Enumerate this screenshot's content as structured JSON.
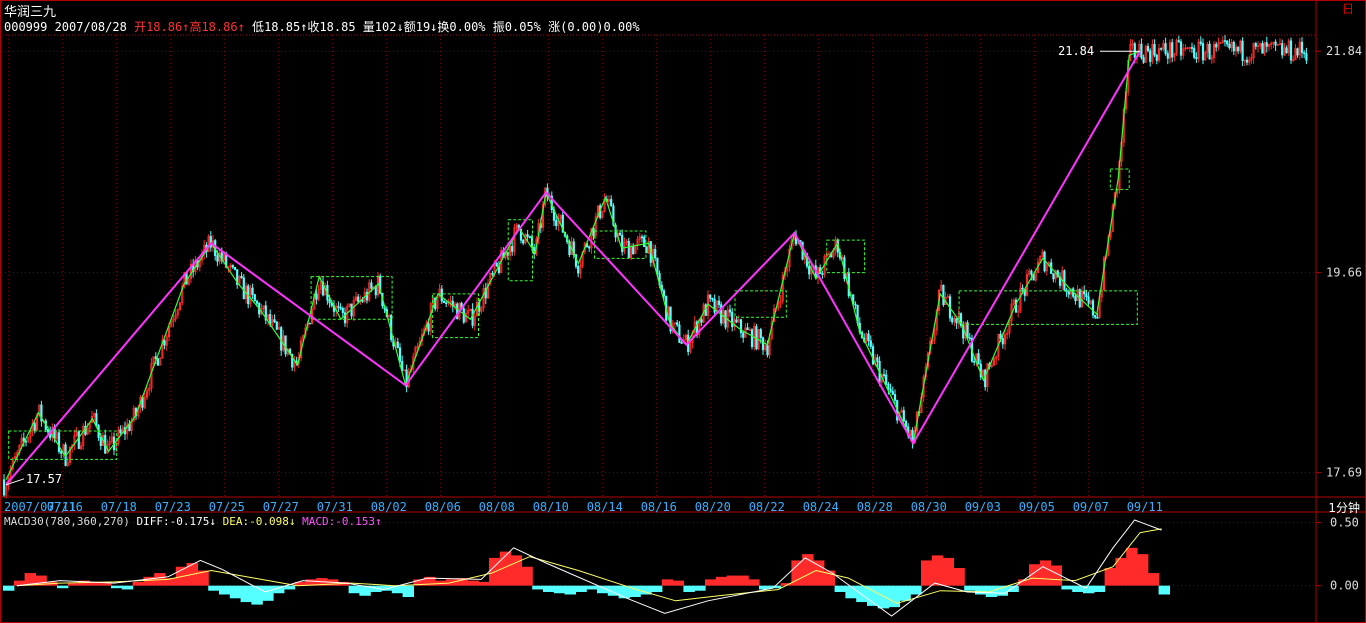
{
  "header": {
    "title": "华润三九",
    "code_date": "000999 2007/08/28",
    "open_label": "开",
    "open": "18.86",
    "high_label": "高",
    "high": "18.86",
    "low_label": "低",
    "low": "18.85",
    "close_label": "收",
    "close": "18.85",
    "volume": "量102",
    "amount": "额19",
    "turnover": "换0.00%",
    "amplitude": "振0.05%",
    "change": "涨(0.00)0.00%",
    "up_arrow": "↑",
    "down_arrow": "↓"
  },
  "period_label": "1分钟",
  "corner_icon": "restore-icon",
  "colors": {
    "background": "#000000",
    "frame": "#b40000",
    "grid": "#8a0000",
    "up": "#ff2a2a",
    "down": "#55ffff",
    "zigzag_major": "#ff33ff",
    "zigzag_minor": "#33ff33",
    "box": "#33ff33",
    "diff_line": "#ffffff",
    "dea_line": "#ffff66",
    "macd_text": "#ff55ff"
  },
  "chart_data": [
    {
      "type": "candlestick",
      "y_ticks": [
        17.69,
        19.66,
        21.84
      ],
      "ylim": [
        17.45,
        22.0
      ],
      "high_marker": "21.84",
      "low_marker": "17.57",
      "x_ticks": [
        "2007/07/11",
        "07/16",
        "07/18",
        "07/23",
        "07/25",
        "07/27",
        "07/31",
        "08/02",
        "08/06",
        "08/08",
        "08/10",
        "08/14",
        "08/16",
        "08/20",
        "08/22",
        "08/24",
        "08/28",
        "08/30",
        "09/03",
        "09/05",
        "09/07",
        "09/11"
      ],
      "major_zigzag": [
        {
          "x": 0.0,
          "price": 17.57
        },
        {
          "x": 3.8,
          "price": 19.95
        },
        {
          "x": 7.4,
          "price": 18.55
        },
        {
          "x": 10.0,
          "price": 20.45
        },
        {
          "x": 12.6,
          "price": 18.95
        },
        {
          "x": 14.6,
          "price": 20.05
        },
        {
          "x": 16.8,
          "price": 17.98
        },
        {
          "x": 21.0,
          "price": 21.84
        }
      ],
      "minor_zigzag": [
        {
          "x": 0.0,
          "price": 17.62
        },
        {
          "x": 0.6,
          "price": 18.28
        },
        {
          "x": 1.1,
          "price": 17.85
        },
        {
          "x": 1.6,
          "price": 18.22
        },
        {
          "x": 1.9,
          "price": 17.9
        },
        {
          "x": 2.4,
          "price": 18.25
        },
        {
          "x": 3.3,
          "price": 19.55
        },
        {
          "x": 3.8,
          "price": 19.95
        },
        {
          "x": 4.3,
          "price": 19.55
        },
        {
          "x": 4.7,
          "price": 19.3
        },
        {
          "x": 5.4,
          "price": 18.75
        },
        {
          "x": 5.8,
          "price": 19.62
        },
        {
          "x": 6.2,
          "price": 19.2
        },
        {
          "x": 6.9,
          "price": 19.55
        },
        {
          "x": 7.4,
          "price": 18.55
        },
        {
          "x": 8.0,
          "price": 19.45
        },
        {
          "x": 8.6,
          "price": 19.2
        },
        {
          "x": 9.5,
          "price": 20.1
        },
        {
          "x": 9.8,
          "price": 19.85
        },
        {
          "x": 10.0,
          "price": 20.45
        },
        {
          "x": 10.6,
          "price": 19.75
        },
        {
          "x": 11.1,
          "price": 20.4
        },
        {
          "x": 11.4,
          "price": 19.9
        },
        {
          "x": 11.9,
          "price": 19.95
        },
        {
          "x": 12.3,
          "price": 19.15
        },
        {
          "x": 12.6,
          "price": 18.95
        },
        {
          "x": 13.0,
          "price": 19.35
        },
        {
          "x": 13.6,
          "price": 19.1
        },
        {
          "x": 14.1,
          "price": 18.95
        },
        {
          "x": 14.6,
          "price": 20.05
        },
        {
          "x": 15.0,
          "price": 19.6
        },
        {
          "x": 15.4,
          "price": 19.95
        },
        {
          "x": 15.8,
          "price": 19.1
        },
        {
          "x": 16.8,
          "price": 17.98
        },
        {
          "x": 17.3,
          "price": 19.45
        },
        {
          "x": 17.7,
          "price": 19.15
        },
        {
          "x": 18.1,
          "price": 18.6
        },
        {
          "x": 18.7,
          "price": 19.35
        },
        {
          "x": 19.2,
          "price": 19.8
        },
        {
          "x": 19.7,
          "price": 19.5
        },
        {
          "x": 20.2,
          "price": 19.25
        },
        {
          "x": 20.6,
          "price": 20.6
        },
        {
          "x": 20.8,
          "price": 21.8
        },
        {
          "x": 21.0,
          "price": 21.84
        }
      ],
      "consolidation_boxes": [
        {
          "x0": 0.05,
          "x1": 2.05,
          "top": 18.1,
          "bottom": 17.82
        },
        {
          "x0": 5.65,
          "x1": 7.15,
          "top": 19.62,
          "bottom": 19.2
        },
        {
          "x0": 7.9,
          "x1": 8.75,
          "top": 19.45,
          "bottom": 19.02
        },
        {
          "x0": 9.3,
          "x1": 9.75,
          "top": 20.18,
          "bottom": 19.58
        },
        {
          "x0": 10.9,
          "x1": 11.85,
          "top": 20.07,
          "bottom": 19.8
        },
        {
          "x0": 13.5,
          "x1": 14.45,
          "top": 19.48,
          "bottom": 19.22
        },
        {
          "x0": 15.2,
          "x1": 15.9,
          "top": 19.98,
          "bottom": 19.66
        },
        {
          "x0": 17.65,
          "x1": 20.95,
          "top": 19.48,
          "bottom": 19.15
        },
        {
          "x0": 20.45,
          "x1": 20.8,
          "top": 20.68,
          "bottom": 20.48
        }
      ]
    },
    {
      "type": "macd",
      "params": "MACD30(780,360,270)",
      "diff_label": "DIFF:",
      "diff": "-0.175",
      "dea_label": "DEA:",
      "dea": "-0.098",
      "macd_label": "MACD:",
      "macd": "-0.153",
      "y_ticks": [
        0.0,
        0.5
      ],
      "ylim": [
        -0.28,
        0.56
      ],
      "histogram": [
        {
          "x": 0.05,
          "v": -0.04
        },
        {
          "x": 0.25,
          "v": 0.04
        },
        {
          "x": 0.45,
          "v": 0.1
        },
        {
          "x": 0.65,
          "v": 0.08
        },
        {
          "x": 0.85,
          "v": 0.03
        },
        {
          "x": 1.05,
          "v": -0.02
        },
        {
          "x": 1.25,
          "v": 0.02
        },
        {
          "x": 1.45,
          "v": 0.04
        },
        {
          "x": 1.65,
          "v": 0.03
        },
        {
          "x": 1.85,
          "v": 0.02
        },
        {
          "x": 2.05,
          "v": -0.02
        },
        {
          "x": 2.25,
          "v": -0.03
        },
        {
          "x": 2.45,
          "v": 0.03
        },
        {
          "x": 2.65,
          "v": 0.07
        },
        {
          "x": 2.85,
          "v": 0.1
        },
        {
          "x": 3.05,
          "v": 0.06
        },
        {
          "x": 3.25,
          "v": 0.15
        },
        {
          "x": 3.45,
          "v": 0.18
        },
        {
          "x": 3.65,
          "v": 0.12
        },
        {
          "x": 3.85,
          "v": -0.04
        },
        {
          "x": 4.05,
          "v": -0.07
        },
        {
          "x": 4.25,
          "v": -0.1
        },
        {
          "x": 4.45,
          "v": -0.13
        },
        {
          "x": 4.65,
          "v": -0.15
        },
        {
          "x": 4.85,
          "v": -0.12
        },
        {
          "x": 5.05,
          "v": -0.06
        },
        {
          "x": 5.25,
          "v": -0.03
        },
        {
          "x": 5.45,
          "v": 0.03
        },
        {
          "x": 5.65,
          "v": 0.05
        },
        {
          "x": 5.85,
          "v": 0.06
        },
        {
          "x": 6.05,
          "v": 0.05
        },
        {
          "x": 6.25,
          "v": 0.03
        },
        {
          "x": 6.45,
          "v": -0.06
        },
        {
          "x": 6.65,
          "v": -0.08
        },
        {
          "x": 6.85,
          "v": -0.05
        },
        {
          "x": 7.05,
          "v": -0.04
        },
        {
          "x": 7.25,
          "v": -0.06
        },
        {
          "x": 7.45,
          "v": -0.09
        },
        {
          "x": 7.65,
          "v": 0.05
        },
        {
          "x": 7.85,
          "v": 0.07
        },
        {
          "x": 8.05,
          "v": 0.04
        },
        {
          "x": 8.25,
          "v": 0.05
        },
        {
          "x": 8.45,
          "v": 0.06
        },
        {
          "x": 8.65,
          "v": 0.04
        },
        {
          "x": 8.85,
          "v": 0.03
        },
        {
          "x": 9.05,
          "v": 0.22
        },
        {
          "x": 9.25,
          "v": 0.27
        },
        {
          "x": 9.45,
          "v": 0.24
        },
        {
          "x": 9.65,
          "v": 0.15
        },
        {
          "x": 9.85,
          "v": -0.03
        },
        {
          "x": 10.05,
          "v": -0.05
        },
        {
          "x": 10.25,
          "v": -0.06
        },
        {
          "x": 10.45,
          "v": -0.07
        },
        {
          "x": 10.65,
          "v": -0.05
        },
        {
          "x": 10.85,
          "v": -0.03
        },
        {
          "x": 11.05,
          "v": -0.06
        },
        {
          "x": 11.25,
          "v": -0.08
        },
        {
          "x": 11.45,
          "v": -0.1
        },
        {
          "x": 11.65,
          "v": -0.09
        },
        {
          "x": 11.85,
          "v": -0.07
        },
        {
          "x": 12.05,
          "v": -0.05
        },
        {
          "x": 12.25,
          "v": 0.05
        },
        {
          "x": 12.45,
          "v": 0.04
        },
        {
          "x": 12.65,
          "v": -0.05
        },
        {
          "x": 12.85,
          "v": -0.04
        },
        {
          "x": 13.05,
          "v": 0.05
        },
        {
          "x": 13.25,
          "v": 0.07
        },
        {
          "x": 13.45,
          "v": 0.08
        },
        {
          "x": 13.65,
          "v": 0.08
        },
        {
          "x": 13.85,
          "v": 0.05
        },
        {
          "x": 14.05,
          "v": -0.03
        },
        {
          "x": 14.25,
          "v": -0.02
        },
        {
          "x": 14.45,
          "v": 0.02
        },
        {
          "x": 14.65,
          "v": 0.2
        },
        {
          "x": 14.85,
          "v": 0.25
        },
        {
          "x": 15.05,
          "v": 0.2
        },
        {
          "x": 15.25,
          "v": 0.12
        },
        {
          "x": 15.45,
          "v": -0.05
        },
        {
          "x": 15.65,
          "v": -0.1
        },
        {
          "x": 15.85,
          "v": -0.13
        },
        {
          "x": 16.05,
          "v": -0.16
        },
        {
          "x": 16.25,
          "v": -0.18
        },
        {
          "x": 16.45,
          "v": -0.17
        },
        {
          "x": 16.65,
          "v": -0.12
        },
        {
          "x": 16.85,
          "v": -0.07
        },
        {
          "x": 17.05,
          "v": 0.2
        },
        {
          "x": 17.25,
          "v": 0.24
        },
        {
          "x": 17.45,
          "v": 0.22
        },
        {
          "x": 17.65,
          "v": 0.14
        },
        {
          "x": 17.85,
          "v": -0.04
        },
        {
          "x": 18.05,
          "v": -0.07
        },
        {
          "x": 18.25,
          "v": -0.09
        },
        {
          "x": 18.45,
          "v": -0.08
        },
        {
          "x": 18.65,
          "v": -0.05
        },
        {
          "x": 18.85,
          "v": 0.05
        },
        {
          "x": 19.05,
          "v": 0.17
        },
        {
          "x": 19.25,
          "v": 0.2
        },
        {
          "x": 19.45,
          "v": 0.16
        },
        {
          "x": 19.65,
          "v": -0.03
        },
        {
          "x": 19.85,
          "v": -0.05
        },
        {
          "x": 20.05,
          "v": -0.06
        },
        {
          "x": 20.25,
          "v": -0.05
        },
        {
          "x": 20.45,
          "v": 0.14
        },
        {
          "x": 20.65,
          "v": 0.22
        },
        {
          "x": 20.85,
          "v": 0.3
        },
        {
          "x": 21.05,
          "v": 0.25
        },
        {
          "x": 21.25,
          "v": 0.1
        },
        {
          "x": 21.45,
          "v": -0.07
        }
      ],
      "diff_line": [
        {
          "x": 0.2,
          "v": 0.0
        },
        {
          "x": 1.0,
          "v": 0.04
        },
        {
          "x": 2.0,
          "v": 0.02
        },
        {
          "x": 3.0,
          "v": 0.07
        },
        {
          "x": 3.6,
          "v": 0.2
        },
        {
          "x": 4.0,
          "v": 0.13
        },
        {
          "x": 4.8,
          "v": -0.05
        },
        {
          "x": 5.5,
          "v": 0.04
        },
        {
          "x": 6.3,
          "v": 0.02
        },
        {
          "x": 7.0,
          "v": -0.03
        },
        {
          "x": 7.8,
          "v": 0.06
        },
        {
          "x": 8.8,
          "v": 0.05
        },
        {
          "x": 9.4,
          "v": 0.3
        },
        {
          "x": 10.0,
          "v": 0.18
        },
        {
          "x": 11.5,
          "v": -0.1
        },
        {
          "x": 12.2,
          "v": -0.22
        },
        {
          "x": 13.0,
          "v": -0.12
        },
        {
          "x": 14.2,
          "v": -0.02
        },
        {
          "x": 14.8,
          "v": 0.22
        },
        {
          "x": 15.3,
          "v": 0.1
        },
        {
          "x": 16.4,
          "v": -0.24
        },
        {
          "x": 17.2,
          "v": 0.02
        },
        {
          "x": 17.8,
          "v": -0.05
        },
        {
          "x": 18.5,
          "v": -0.06
        },
        {
          "x": 19.2,
          "v": 0.15
        },
        {
          "x": 20.0,
          "v": -0.02
        },
        {
          "x": 20.5,
          "v": 0.3
        },
        {
          "x": 20.9,
          "v": 0.52
        },
        {
          "x": 21.4,
          "v": 0.44
        }
      ],
      "dea_line": [
        {
          "x": 0.2,
          "v": 0.0
        },
        {
          "x": 1.0,
          "v": 0.02
        },
        {
          "x": 2.0,
          "v": 0.03
        },
        {
          "x": 3.0,
          "v": 0.05
        },
        {
          "x": 3.8,
          "v": 0.12
        },
        {
          "x": 4.6,
          "v": 0.06
        },
        {
          "x": 5.4,
          "v": 0.0
        },
        {
          "x": 6.4,
          "v": 0.02
        },
        {
          "x": 7.2,
          "v": 0.0
        },
        {
          "x": 8.2,
          "v": 0.02
        },
        {
          "x": 9.0,
          "v": 0.1
        },
        {
          "x": 9.7,
          "v": 0.23
        },
        {
          "x": 10.6,
          "v": 0.12
        },
        {
          "x": 11.6,
          "v": -0.02
        },
        {
          "x": 12.4,
          "v": -0.12
        },
        {
          "x": 13.2,
          "v": -0.08
        },
        {
          "x": 14.3,
          "v": -0.03
        },
        {
          "x": 15.0,
          "v": 0.12
        },
        {
          "x": 15.6,
          "v": 0.06
        },
        {
          "x": 16.5,
          "v": -0.14
        },
        {
          "x": 17.3,
          "v": -0.04
        },
        {
          "x": 18.2,
          "v": -0.05
        },
        {
          "x": 19.0,
          "v": 0.06
        },
        {
          "x": 19.8,
          "v": 0.04
        },
        {
          "x": 20.5,
          "v": 0.15
        },
        {
          "x": 21.0,
          "v": 0.42
        },
        {
          "x": 21.4,
          "v": 0.45
        }
      ]
    }
  ]
}
